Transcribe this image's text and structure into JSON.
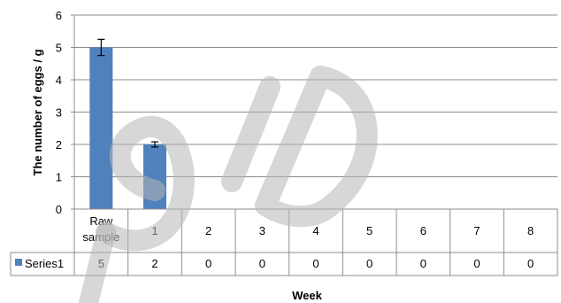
{
  "chart_data": {
    "type": "bar",
    "title": "",
    "xlabel": "Week",
    "ylabel": "The number of eggs / g",
    "ylim": [
      0,
      6
    ],
    "yticks": [
      0,
      1,
      2,
      3,
      4,
      5,
      6
    ],
    "grid": true,
    "categories": [
      "Raw sample",
      "1",
      "2",
      "3",
      "4",
      "5",
      "6",
      "7",
      "8"
    ],
    "series": [
      {
        "name": "Series1",
        "values": [
          5,
          2,
          0,
          0,
          0,
          0,
          0,
          0,
          0
        ],
        "errors": [
          0.25,
          0.08,
          0,
          0,
          0,
          0,
          0,
          0,
          0
        ],
        "color": "#4f81bd"
      }
    ],
    "data_table": true,
    "legend_position": "data-table"
  },
  "watermark": {
    "text": "SID",
    "color": "#b7b7b7"
  }
}
